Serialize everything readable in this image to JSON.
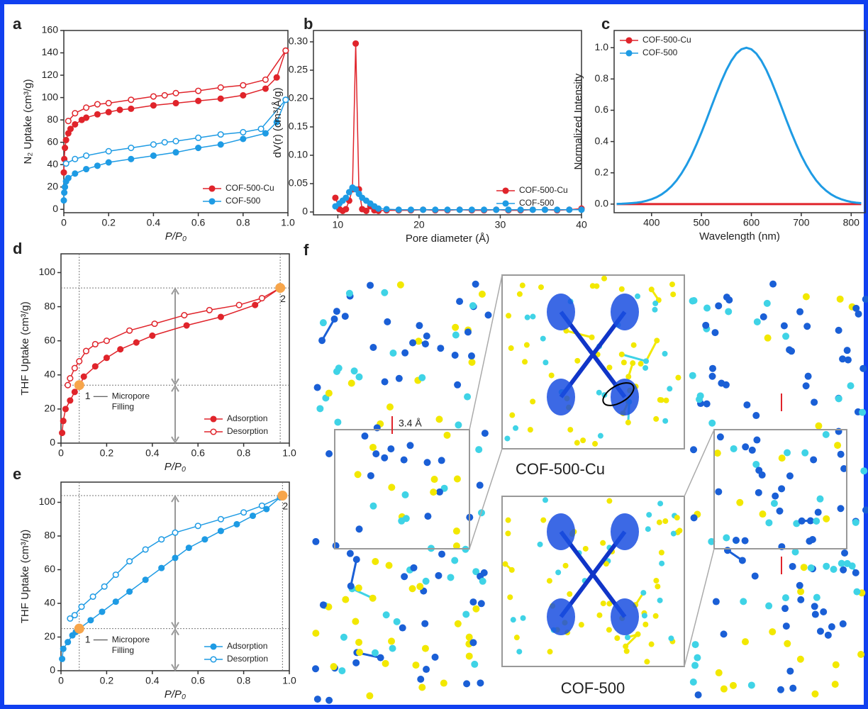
{
  "chart_data": [
    {
      "type": "line",
      "panel": "a",
      "xlabel": "P/P₀",
      "ylabel": "N₂ Uptake (cm³/g)",
      "xlim": [
        0,
        1
      ],
      "ylim": [
        -3,
        160
      ],
      "xticks": [
        0,
        0.2,
        0.4,
        0.6,
        0.8,
        {
          "value": 1,
          "label": "1.0"
        }
      ],
      "yticks": [
        0,
        20,
        40,
        60,
        80,
        100,
        120,
        140,
        160
      ],
      "legend": "lower right",
      "series": [
        {
          "name": "COF-500-Cu",
          "color": "#e0242b",
          "marker": "filled",
          "x": [
            0,
            0.002,
            0.005,
            0.01,
            0.02,
            0.03,
            0.05,
            0.08,
            0.1,
            0.15,
            0.2,
            0.25,
            0.3,
            0.4,
            0.5,
            0.6,
            0.7,
            0.8,
            0.9,
            0.95,
            0.99
          ],
          "values": [
            33,
            45,
            55,
            62,
            68,
            72,
            76,
            80,
            82,
            85,
            87,
            89,
            90,
            93,
            95,
            97,
            99,
            102,
            108,
            118,
            142
          ]
        },
        {
          "color": "#e0242b",
          "marker": "open",
          "x": [
            0.99,
            0.9,
            0.8,
            0.7,
            0.6,
            0.5,
            0.45,
            0.4,
            0.3,
            0.2,
            0.15,
            0.1,
            0.05,
            0.02
          ],
          "values": [
            142,
            116,
            111,
            109,
            106,
            104,
            102,
            101,
            98,
            95,
            94,
            91,
            86,
            79
          ]
        },
        {
          "name": "COF-500",
          "color": "#1e9be4",
          "marker": "filled",
          "x": [
            0,
            0.002,
            0.005,
            0.01,
            0.02,
            0.05,
            0.1,
            0.15,
            0.2,
            0.3,
            0.4,
            0.5,
            0.6,
            0.7,
            0.8,
            0.9,
            0.95,
            0.99
          ],
          "values": [
            8,
            15,
            20,
            25,
            28,
            32,
            36,
            39,
            42,
            45,
            48,
            51,
            55,
            58,
            63,
            68,
            78,
            98
          ]
        },
        {
          "color": "#1e9be4",
          "marker": "open",
          "x": [
            0.99,
            0.88,
            0.8,
            0.7,
            0.6,
            0.5,
            0.45,
            0.4,
            0.3,
            0.2,
            0.1,
            0.05,
            0.01
          ],
          "values": [
            98,
            72,
            69,
            67,
            64,
            61,
            60,
            58,
            55,
            52,
            48,
            45,
            41
          ]
        }
      ]
    },
    {
      "type": "line",
      "panel": "b",
      "xlabel": "Pore diameter (Å)",
      "ylabel": "dV(r) (cm³/Å/g)",
      "xlim": [
        7,
        40
      ],
      "ylim": [
        -0.005,
        0.32
      ],
      "xticks": [
        10,
        20,
        30,
        40
      ],
      "yticks": [
        0,
        0.05,
        {
          "value": 0.1,
          "label": "0.10"
        },
        0.15,
        {
          "value": 0.2,
          "label": "0.20"
        },
        0.25,
        {
          "value": 0.3,
          "label": "0.30"
        }
      ],
      "legend": "lower right",
      "x": [
        9.7,
        10.2,
        10.6,
        11.0,
        11.4,
        11.8,
        12.2,
        12.6,
        13.0,
        13.5,
        14,
        14.5,
        15,
        16,
        17.5,
        19,
        20.5,
        22,
        23.5,
        25,
        26.5,
        28,
        29.5,
        31,
        32.5,
        34,
        35.5,
        37,
        38.5,
        40
      ],
      "series": [
        {
          "name": "COF-500-Cu",
          "color": "#e0242b",
          "marker": "filled",
          "values": [
            0.025,
            0.005,
            0.002,
            0.005,
            0.02,
            0.04,
            0.297,
            0.04,
            0.005,
            0.002,
            0.01,
            0.003,
            0.002,
            0.003,
            0.003,
            0.003,
            0.004,
            0.003,
            0.003,
            0.004,
            0.003,
            0.003,
            0.004,
            0.003,
            0.003,
            0.004,
            0.004,
            0.003,
            0.004,
            0.006
          ]
        },
        {
          "name": "COF-500",
          "color": "#1e9be4",
          "marker": "filled",
          "values": [
            0.01,
            0.015,
            0.02,
            0.025,
            0.035,
            0.043,
            0.04,
            0.032,
            0.025,
            0.02,
            0.015,
            0.01,
            0.006,
            0.005,
            0.004,
            0.004,
            0.004,
            0.004,
            0.004,
            0.004,
            0.004,
            0.004,
            0.004,
            0.004,
            0.004,
            0.004,
            0.004,
            0.004,
            0.004,
            0.004
          ]
        }
      ]
    },
    {
      "type": "line",
      "panel": "c",
      "xlabel": "Wavelength (nm)",
      "ylabel": "Normalized Intensity",
      "xlim": [
        325,
        828
      ],
      "ylim": [
        -0.055,
        1.11
      ],
      "xticks": [
        400,
        500,
        600,
        700,
        800
      ],
      "yticks": [
        {
          "value": 0,
          "label": "0.0"
        },
        0.2,
        0.4,
        0.6,
        0.8,
        {
          "value": 1,
          "label": "1.0"
        }
      ],
      "legend": "upper left",
      "x": [
        330,
        340,
        350,
        360,
        370,
        380,
        390,
        400,
        410,
        420,
        430,
        440,
        450,
        460,
        470,
        480,
        490,
        500,
        510,
        520,
        530,
        540,
        550,
        560,
        570,
        580,
        590,
        600,
        610,
        620,
        630,
        640,
        650,
        660,
        670,
        680,
        690,
        700,
        710,
        720,
        730,
        740,
        750,
        760,
        770,
        780,
        790,
        800,
        810,
        820
      ],
      "series": [
        {
          "name": "COF-500-Cu",
          "color": "#e0242b",
          "marker": "none",
          "values": [
            0,
            0,
            0,
            0,
            0,
            0,
            0,
            0,
            0,
            0,
            0,
            0,
            0,
            0,
            0,
            0,
            0,
            0,
            0,
            0,
            0,
            0,
            0,
            0,
            0,
            0,
            0,
            0,
            0,
            0,
            0,
            0,
            0,
            0,
            0,
            0,
            0,
            0,
            0,
            0,
            0,
            0,
            0,
            0,
            0,
            0,
            0,
            0,
            0,
            0
          ]
        },
        {
          "name": "COF-500",
          "color": "#1e9be4",
          "marker": "none",
          "values": [
            0.001,
            0.002,
            0.004,
            0.006,
            0.009,
            0.014,
            0.021,
            0.031,
            0.044,
            0.062,
            0.085,
            0.114,
            0.151,
            0.196,
            0.249,
            0.311,
            0.381,
            0.458,
            0.539,
            0.623,
            0.707,
            0.786,
            0.857,
            0.917,
            0.962,
            0.99,
            1,
            0.99,
            0.962,
            0.917,
            0.857,
            0.786,
            0.707,
            0.623,
            0.539,
            0.458,
            0.381,
            0.311,
            0.249,
            0.196,
            0.151,
            0.114,
            0.085,
            0.062,
            0.044,
            0.031,
            0.021,
            0.014,
            0.009,
            0.006
          ]
        }
      ]
    },
    {
      "type": "line",
      "panel": "d",
      "xlabel": "P/P₀",
      "ylabel": "THF Uptake (cm³/g)",
      "xlim": [
        0,
        1
      ],
      "ylim": [
        0,
        111
      ],
      "xticks": [
        0,
        0.2,
        0.4,
        0.6,
        0.8,
        {
          "value": 1,
          "label": "1.0"
        }
      ],
      "yticks": [
        0,
        20,
        40,
        60,
        80,
        100
      ],
      "legend": "lower right",
      "points": [
        {
          "x": 0.08,
          "y": 34,
          "label": "1"
        },
        {
          "x": 0.96,
          "y": 91,
          "label": "2"
        }
      ],
      "annotation_lines": [
        "Micropore",
        "Filling"
      ],
      "series": [
        {
          "name": "Adsorption",
          "color": "#e0242b",
          "marker": "filled",
          "x": [
            0.005,
            0.01,
            0.02,
            0.04,
            0.06,
            0.08,
            0.1,
            0.15,
            0.2,
            0.26,
            0.33,
            0.4,
            0.55,
            0.7,
            0.85,
            0.96
          ],
          "values": [
            6,
            13,
            20,
            25,
            30,
            33,
            39,
            45,
            50,
            55,
            59,
            63,
            69,
            74,
            81,
            91
          ]
        },
        {
          "name": "Desorption",
          "color": "#e0242b",
          "marker": "open",
          "x": [
            0.96,
            0.88,
            0.78,
            0.65,
            0.54,
            0.41,
            0.3,
            0.2,
            0.15,
            0.11,
            0.08,
            0.06,
            0.04,
            0.03
          ],
          "values": [
            91,
            85,
            81,
            78,
            75,
            70,
            66,
            60,
            58,
            54,
            48,
            44,
            38,
            34
          ]
        }
      ]
    },
    {
      "type": "line",
      "panel": "e",
      "xlabel": "P/P₀",
      "ylabel": "THF Uptake (cm³/g)",
      "xlim": [
        0,
        1
      ],
      "ylim": [
        0,
        112
      ],
      "xticks": [
        0,
        0.2,
        0.4,
        0.6,
        0.8,
        {
          "value": 1,
          "label": "1.0"
        }
      ],
      "yticks": [
        0,
        20,
        40,
        60,
        80,
        100
      ],
      "legend": "lower right",
      "points": [
        {
          "x": 0.08,
          "y": 25,
          "label": "1"
        },
        {
          "x": 0.97,
          "y": 104,
          "label": "2"
        }
      ],
      "annotation_lines": [
        "Micropore",
        "Filling"
      ],
      "series": [
        {
          "name": "Adsorption",
          "color": "#1e9be4",
          "marker": "filled",
          "x": [
            0.005,
            0.01,
            0.03,
            0.05,
            0.065,
            0.08,
            0.13,
            0.18,
            0.24,
            0.3,
            0.37,
            0.44,
            0.5,
            0.56,
            0.63,
            0.7,
            0.77,
            0.84,
            0.9,
            0.96
          ],
          "values": [
            7,
            13,
            17,
            21,
            23,
            25,
            30,
            35,
            41,
            47,
            54,
            61,
            67,
            73,
            78,
            83,
            87,
            92,
            96,
            103
          ]
        },
        {
          "name": "Desorption",
          "color": "#1e9be4",
          "marker": "open",
          "x": [
            0.96,
            0.88,
            0.8,
            0.7,
            0.6,
            0.5,
            0.44,
            0.37,
            0.3,
            0.24,
            0.19,
            0.14,
            0.09,
            0.06,
            0.04
          ],
          "values": [
            103,
            98,
            94,
            90,
            86,
            82,
            78,
            72,
            65,
            57,
            50,
            44,
            38,
            33,
            31
          ]
        }
      ]
    }
  ],
  "panel_f": {
    "panel": "f",
    "distance": "3.4 Å",
    "top_label": "COF-500-Cu",
    "bottom_label": "COF-500"
  }
}
